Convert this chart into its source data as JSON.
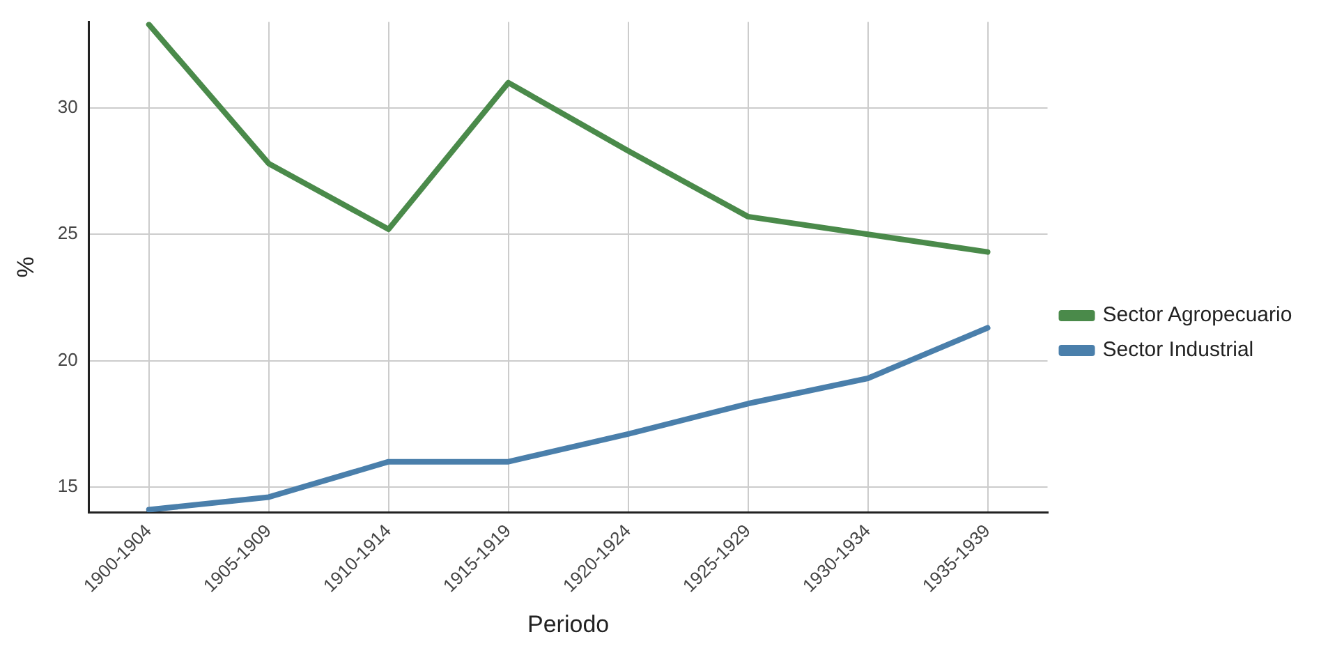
{
  "chart_data": {
    "type": "line",
    "xlabel": "Periodo",
    "ylabel": "%",
    "categories": [
      "1900-1904",
      "1905-1909",
      "1910-1914",
      "1915-1919",
      "1920-1924",
      "1925-1929",
      "1930-1934",
      "1935-1939"
    ],
    "series": [
      {
        "name": "Sector Agropecuario",
        "color": "#4a8a4a",
        "values": [
          33.3,
          27.8,
          25.2,
          31.0,
          28.3,
          25.7,
          25.0,
          24.3
        ]
      },
      {
        "name": "Sector Industrial",
        "color": "#4a7fab",
        "values": [
          14.1,
          14.6,
          16.0,
          16.0,
          17.1,
          18.3,
          19.3,
          21.3
        ]
      }
    ],
    "ylim": [
      14,
      33.4
    ],
    "yticks": [
      15,
      20,
      25,
      30
    ],
    "grid": true,
    "legend": "right",
    "marker": "none",
    "line_style": "solid"
  }
}
